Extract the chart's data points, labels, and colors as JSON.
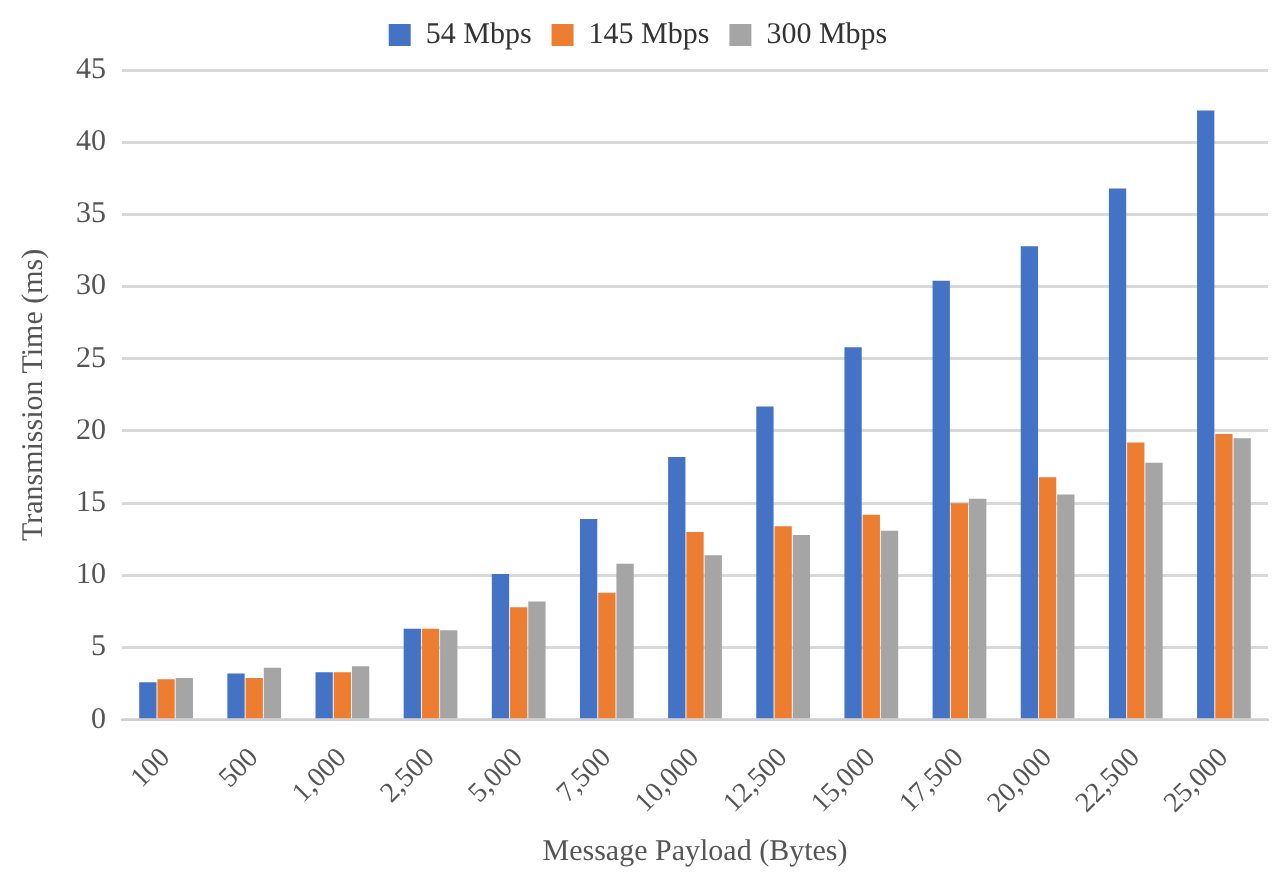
{
  "chart_data": {
    "type": "bar",
    "xlabel": "Message Payload (Bytes)",
    "ylabel": "Transmission Time (ms)",
    "categories": [
      "100",
      "500",
      "1,000",
      "2,500",
      "5,000",
      "7,500",
      "10,000",
      "12,500",
      "15,000",
      "17,500",
      "20,000",
      "22,500",
      "25,000"
    ],
    "series": [
      {
        "name": "54 Mbps",
        "color": "#4472c4",
        "values": [
          2.6,
          3.2,
          3.3,
          6.3,
          10.1,
          13.9,
          18.2,
          21.7,
          25.8,
          30.4,
          32.8,
          36.8,
          42.2
        ]
      },
      {
        "name": "145 Mbps",
        "color": "#ed7d31",
        "values": [
          2.8,
          2.9,
          3.3,
          6.3,
          7.8,
          8.8,
          13.0,
          13.4,
          14.2,
          15.0,
          16.8,
          19.2,
          19.8
        ]
      },
      {
        "name": "300 Mbps",
        "color": "#a5a5a5",
        "values": [
          2.9,
          3.6,
          3.7,
          6.2,
          8.2,
          10.8,
          11.4,
          12.8,
          13.1,
          15.3,
          15.6,
          17.8,
          19.5
        ]
      }
    ],
    "ylim": [
      0,
      45
    ],
    "yticks": [
      0,
      5,
      10,
      15,
      20,
      25,
      30,
      35,
      40,
      45
    ],
    "grid": "y",
    "legend": "top"
  }
}
